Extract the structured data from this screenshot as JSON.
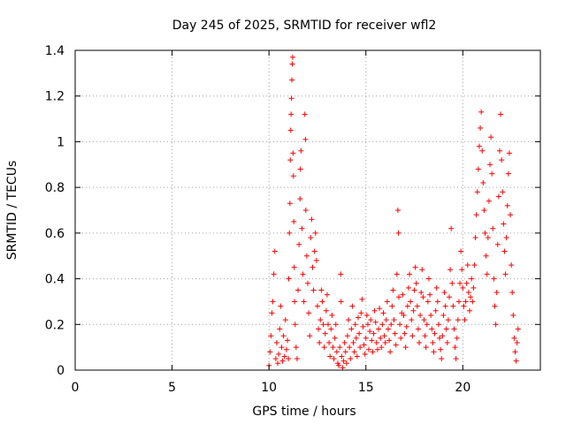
{
  "chart_data": {
    "type": "scatter",
    "title": "Day 245 of 2025, SRMTID for receiver wfl2",
    "xlabel": "GPS time / hours",
    "ylabel": "SRMTID / TECUs",
    "xlim": [
      0,
      24
    ],
    "ylim": [
      0,
      1.4
    ],
    "xticks": [
      0,
      5,
      10,
      15,
      20
    ],
    "xtick_labels": [
      "0",
      "5",
      "10",
      "15",
      "20"
    ],
    "yticks": [
      0,
      0.2,
      0.4,
      0.6,
      0.8,
      1.0,
      1.2,
      1.4
    ],
    "ytick_labels": [
      "0",
      "0.2",
      "0.4",
      "0.6",
      "0.8",
      "1",
      "1.2",
      "1.4"
    ],
    "grid": true,
    "marker": "+",
    "color": "#ff0000",
    "series": [
      {
        "name": "wfl2",
        "points": [
          [
            10.0,
            0.02
          ],
          [
            10.05,
            0.08
          ],
          [
            10.1,
            0.15
          ],
          [
            10.15,
            0.25
          ],
          [
            10.2,
            0.3
          ],
          [
            10.25,
            0.42
          ],
          [
            10.3,
            0.52
          ],
          [
            10.35,
            0.05
          ],
          [
            10.4,
            0.12
          ],
          [
            10.45,
            0.03
          ],
          [
            10.5,
            0.07
          ],
          [
            10.55,
            0.18
          ],
          [
            10.6,
            0.28
          ],
          [
            10.65,
            0.1
          ],
          [
            10.7,
            0.04
          ],
          [
            10.75,
            0.15
          ],
          [
            10.8,
            0.06
          ],
          [
            10.85,
            0.22
          ],
          [
            10.9,
            0.09
          ],
          [
            10.95,
            0.13
          ],
          [
            11.0,
            0.05
          ],
          [
            11.02,
            0.4
          ],
          [
            11.05,
            0.6
          ],
          [
            11.08,
            0.73
          ],
          [
            11.1,
            0.92
          ],
          [
            11.12,
            1.05
          ],
          [
            11.14,
            1.12
          ],
          [
            11.16,
            1.19
          ],
          [
            11.18,
            1.27
          ],
          [
            11.2,
            1.34
          ],
          [
            11.22,
            1.37
          ],
          [
            11.24,
            0.95
          ],
          [
            11.26,
            0.85
          ],
          [
            11.28,
            0.65
          ],
          [
            11.3,
            0.45
          ],
          [
            11.32,
            0.3
          ],
          [
            11.35,
            0.2
          ],
          [
            11.4,
            0.1
          ],
          [
            11.45,
            0.05
          ],
          [
            11.5,
            0.35
          ],
          [
            11.55,
            0.55
          ],
          [
            11.6,
            0.75
          ],
          [
            11.62,
            0.88
          ],
          [
            11.65,
            0.96
          ],
          [
            11.7,
            0.62
          ],
          [
            11.75,
            0.42
          ],
          [
            11.8,
            0.3
          ],
          [
            11.85,
            1.12
          ],
          [
            11.88,
            1.01
          ],
          [
            11.9,
            0.7
          ],
          [
            11.95,
            0.5
          ],
          [
            12.0,
            0.38
          ],
          [
            12.05,
            0.25
          ],
          [
            12.1,
            0.15
          ],
          [
            12.15,
            0.58
          ],
          [
            12.2,
            0.66
          ],
          [
            12.25,
            0.45
          ],
          [
            12.3,
            0.35
          ],
          [
            12.35,
            0.52
          ],
          [
            12.4,
            0.6
          ],
          [
            12.45,
            0.48
          ],
          [
            12.5,
            0.28
          ],
          [
            12.55,
            0.18
          ],
          [
            12.6,
            0.12
          ],
          [
            12.65,
            0.22
          ],
          [
            12.7,
            0.35
          ],
          [
            12.75,
            0.3
          ],
          [
            12.8,
            0.2
          ],
          [
            12.85,
            0.1
          ],
          [
            12.9,
            0.16
          ],
          [
            12.95,
            0.26
          ],
          [
            13.0,
            0.33
          ],
          [
            13.05,
            0.2
          ],
          [
            13.1,
            0.12
          ],
          [
            13.15,
            0.06
          ],
          [
            13.2,
            0.18
          ],
          [
            13.25,
            0.24
          ],
          [
            13.3,
            0.1
          ],
          [
            13.35,
            0.05
          ],
          [
            13.4,
            0.14
          ],
          [
            13.45,
            0.2
          ],
          [
            13.5,
            0.08
          ],
          [
            13.55,
            0.03
          ],
          [
            13.6,
            0.02
          ],
          [
            13.65,
            0.1
          ],
          [
            13.7,
            0.42
          ],
          [
            13.72,
            0.3
          ],
          [
            13.75,
            0.06
          ],
          [
            13.8,
            0.01
          ],
          [
            13.85,
            0.04
          ],
          [
            13.9,
            0.12
          ],
          [
            13.95,
            0.08
          ],
          [
            14.0,
            0.03
          ],
          [
            14.05,
            0.15
          ],
          [
            14.1,
            0.22
          ],
          [
            14.15,
            0.1
          ],
          [
            14.2,
            0.05
          ],
          [
            14.25,
            0.18
          ],
          [
            14.3,
            0.28
          ],
          [
            14.35,
            0.12
          ],
          [
            14.4,
            0.08
          ],
          [
            14.45,
            0.2
          ],
          [
            14.5,
            0.14
          ],
          [
            14.55,
            0.06
          ],
          [
            14.6,
            0.23
          ],
          [
            14.65,
            0.16
          ],
          [
            14.7,
            0.1
          ],
          [
            14.75,
            0.25
          ],
          [
            14.8,
            0.31
          ],
          [
            14.85,
            0.19
          ],
          [
            14.9,
            0.11
          ],
          [
            14.95,
            0.07
          ],
          [
            15.0,
            0.14
          ],
          [
            15.05,
            0.24
          ],
          [
            15.1,
            0.2
          ],
          [
            15.15,
            0.09
          ],
          [
            15.2,
            0.17
          ],
          [
            15.25,
            0.22
          ],
          [
            15.3,
            0.13
          ],
          [
            15.35,
            0.08
          ],
          [
            15.4,
            0.16
          ],
          [
            15.45,
            0.26
          ],
          [
            15.5,
            0.21
          ],
          [
            15.55,
            0.12
          ],
          [
            15.6,
            0.09
          ],
          [
            15.65,
            0.18
          ],
          [
            15.7,
            0.27
          ],
          [
            15.75,
            0.14
          ],
          [
            15.8,
            0.1
          ],
          [
            15.85,
            0.2
          ],
          [
            15.9,
            0.25
          ],
          [
            15.95,
            0.15
          ],
          [
            16.0,
            0.12
          ],
          [
            16.05,
            0.22
          ],
          [
            16.1,
            0.3
          ],
          [
            16.15,
            0.18
          ],
          [
            16.2,
            0.13
          ],
          [
            16.25,
            0.08
          ],
          [
            16.3,
            0.2
          ],
          [
            16.35,
            0.28
          ],
          [
            16.4,
            0.35
          ],
          [
            16.45,
            0.22
          ],
          [
            16.5,
            0.16
          ],
          [
            16.55,
            0.11
          ],
          [
            16.6,
            0.42
          ],
          [
            16.65,
            0.7
          ],
          [
            16.68,
            0.6
          ],
          [
            16.7,
            0.32
          ],
          [
            16.75,
            0.2
          ],
          [
            16.8,
            0.14
          ],
          [
            16.85,
            0.25
          ],
          [
            16.9,
            0.33
          ],
          [
            16.95,
            0.24
          ],
          [
            17.0,
            0.16
          ],
          [
            17.05,
            0.1
          ],
          [
            17.1,
            0.19
          ],
          [
            17.15,
            0.28
          ],
          [
            17.2,
            0.36
          ],
          [
            17.25,
            0.42
          ],
          [
            17.3,
            0.3
          ],
          [
            17.35,
            0.22
          ],
          [
            17.4,
            0.15
          ],
          [
            17.45,
            0.26
          ],
          [
            17.5,
            0.35
          ],
          [
            17.55,
            0.45
          ],
          [
            17.6,
            0.38
          ],
          [
            17.65,
            0.28
          ],
          [
            17.7,
            0.18
          ],
          [
            17.75,
            0.12
          ],
          [
            17.8,
            0.24
          ],
          [
            17.85,
            0.34
          ],
          [
            17.9,
            0.44
          ],
          [
            17.95,
            0.32
          ],
          [
            18.0,
            0.22
          ],
          [
            18.05,
            0.15
          ],
          [
            18.1,
            0.1
          ],
          [
            18.15,
            0.2
          ],
          [
            18.2,
            0.3
          ],
          [
            18.25,
            0.4
          ],
          [
            18.3,
            0.33
          ],
          [
            18.35,
            0.24
          ],
          [
            18.4,
            0.18
          ],
          [
            18.45,
            0.12
          ],
          [
            18.5,
            0.08
          ],
          [
            18.55,
            0.16
          ],
          [
            18.6,
            0.26
          ],
          [
            18.65,
            0.36
          ],
          [
            18.7,
            0.3
          ],
          [
            18.75,
            0.2
          ],
          [
            18.8,
            0.14
          ],
          [
            18.85,
            0.09
          ],
          [
            18.9,
            0.05
          ],
          [
            18.95,
            0.15
          ],
          [
            19.0,
            0.24
          ],
          [
            19.05,
            0.34
          ],
          [
            19.1,
            0.28
          ],
          [
            19.15,
            0.18
          ],
          [
            19.2,
            0.12
          ],
          [
            19.25,
            0.22
          ],
          [
            19.3,
            0.32
          ],
          [
            19.35,
            0.44
          ],
          [
            19.4,
            0.62
          ],
          [
            19.45,
            0.38
          ],
          [
            19.5,
            0.28
          ],
          [
            19.55,
            0.18
          ],
          [
            19.6,
            0.1
          ],
          [
            19.65,
            0.05
          ],
          [
            19.7,
            0.14
          ],
          [
            19.75,
            0.22
          ],
          [
            19.8,
            0.3
          ],
          [
            19.85,
            0.38
          ],
          [
            19.9,
            0.52
          ],
          [
            19.95,
            0.44
          ],
          [
            20.0,
            0.36
          ],
          [
            20.05,
            0.28
          ],
          [
            20.1,
            0.22
          ],
          [
            20.15,
            0.3
          ],
          [
            20.2,
            0.38
          ],
          [
            20.25,
            0.46
          ],
          [
            20.3,
            0.34
          ],
          [
            20.35,
            0.26
          ],
          [
            20.4,
            0.32
          ],
          [
            20.45,
            0.4
          ],
          [
            20.5,
            0.3
          ],
          [
            20.55,
            0.36
          ],
          [
            20.6,
            0.46
          ],
          [
            20.65,
            0.58
          ],
          [
            20.7,
            0.68
          ],
          [
            20.75,
            0.78
          ],
          [
            20.8,
            0.88
          ],
          [
            20.85,
            0.98
          ],
          [
            20.9,
            1.06
          ],
          [
            20.95,
            1.13
          ],
          [
            21.0,
            0.96
          ],
          [
            21.05,
            0.82
          ],
          [
            21.1,
            0.7
          ],
          [
            21.15,
            0.6
          ],
          [
            21.2,
            0.5
          ],
          [
            21.25,
            0.42
          ],
          [
            21.3,
            0.58
          ],
          [
            21.35,
            0.74
          ],
          [
            21.4,
            0.9
          ],
          [
            21.45,
            1.02
          ],
          [
            21.5,
            0.86
          ],
          [
            21.55,
            0.62
          ],
          [
            21.6,
            0.4
          ],
          [
            21.65,
            0.28
          ],
          [
            21.7,
            0.2
          ],
          [
            21.75,
            0.34
          ],
          [
            21.8,
            0.55
          ],
          [
            21.85,
            0.76
          ],
          [
            21.9,
            0.96
          ],
          [
            21.95,
            1.12
          ],
          [
            22.0,
            0.92
          ],
          [
            22.05,
            0.78
          ],
          [
            22.1,
            0.64
          ],
          [
            22.15,
            0.52
          ],
          [
            22.2,
            0.42
          ],
          [
            22.25,
            0.58
          ],
          [
            22.3,
            0.72
          ],
          [
            22.35,
            0.86
          ],
          [
            22.4,
            0.95
          ],
          [
            22.45,
            0.68
          ],
          [
            22.5,
            0.46
          ],
          [
            22.55,
            0.34
          ],
          [
            22.6,
            0.24
          ],
          [
            22.65,
            0.14
          ],
          [
            22.7,
            0.08
          ],
          [
            22.75,
            0.04
          ],
          [
            22.8,
            0.12
          ],
          [
            22.85,
            0.18
          ]
        ]
      }
    ]
  }
}
